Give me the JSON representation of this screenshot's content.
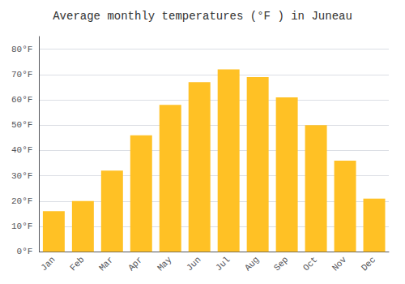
{
  "chart_data": {
    "type": "bar",
    "title": "Average monthly temperatures (°F ) in Juneau",
    "categories": [
      "Jan",
      "Feb",
      "Mar",
      "Apr",
      "May",
      "Jun",
      "Jul",
      "Aug",
      "Sep",
      "Oct",
      "Nov",
      "Dec"
    ],
    "values": [
      16,
      20,
      32,
      46,
      58,
      67,
      72,
      69,
      61,
      50,
      36,
      21
    ],
    "color": "#FFC125",
    "ylim": [
      0,
      85
    ],
    "yticks": [
      {
        "value": 0,
        "label": "0°F"
      },
      {
        "value": 10,
        "label": "10°F"
      },
      {
        "value": 20,
        "label": "20°F"
      },
      {
        "value": 30,
        "label": "30°F"
      },
      {
        "value": 40,
        "label": "40°F"
      },
      {
        "value": 50,
        "label": "50°F"
      },
      {
        "value": 60,
        "label": "60°F"
      },
      {
        "value": 70,
        "label": "70°F"
      },
      {
        "value": 80,
        "label": "80°F"
      }
    ],
    "grid": true
  }
}
